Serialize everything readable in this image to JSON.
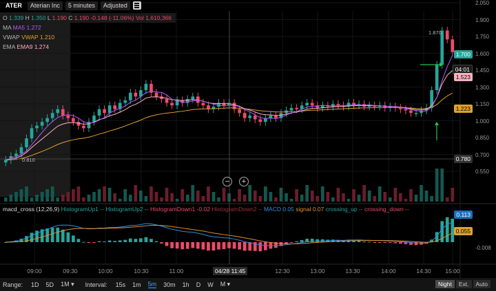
{
  "topbar": {
    "symbol": "ATER",
    "name": "Aterian Inc",
    "interval": "5 minutes",
    "adjusted": "Adjusted"
  },
  "legend": {
    "o_label": "O",
    "o_val": "1.339",
    "h_label": "H",
    "h_val": "1.350",
    "l_label": "L",
    "l_val": "1.190",
    "c_label": "C",
    "c_val": "1.190",
    "change": "-0.148 (-11.06%)",
    "vol_label": "Vol",
    "vol_val": "1,610,366",
    "ma_label": "MA",
    "ma_val": "MA5 1.272",
    "vwap_label": "VWAP",
    "vwap_val": "VWAP 1.210",
    "ema_label": "EMA",
    "ema_val": "EMA9 1.274"
  },
  "price_axis": [
    "2.050",
    "1.900",
    "1.750",
    "1.600",
    "1.450",
    "1.300",
    "1.150",
    "1.000",
    "0.850",
    "0.700",
    "0.550"
  ],
  "price_tags": {
    "last": "1.700",
    "countdown": "04:01",
    "ema": "1.523",
    "vwap": "1.223",
    "cursor": "0.780"
  },
  "annotations": {
    "high": "1.870",
    "low": "0.810"
  },
  "macd_legend": {
    "name": "macd_cross (12,26,9)",
    "hu1": "HistogramUp1 --",
    "hu2": "HistogramUp2 --",
    "hd1": "HistogramDown1 -0.02",
    "hd2": "HistogramDown2 --",
    "macd": "MACD 0.05",
    "signal": "signal 0.07",
    "cu": "crossing_up --",
    "cd": "crossing_down --"
  },
  "macd_axis": {
    "macd": "0.113",
    "signal": "0.055",
    "zero": "-0.008"
  },
  "time_axis": [
    "09:00",
    "09:30",
    "10:00",
    "10:30",
    "11:00",
    "12:30",
    "13:00",
    "13:30",
    "14:00",
    "14:30",
    "15:00"
  ],
  "cursor_time": "04/28 11:45",
  "bottombar": {
    "range_label": "Range:",
    "ranges": [
      "1D",
      "5D",
      "1M ▾"
    ],
    "interval_label": "Interval:",
    "intervals": [
      "15s",
      "1m",
      "5m",
      "30m",
      "1h",
      "D",
      "W",
      "M ▾"
    ],
    "active_interval": "5m",
    "right": [
      "Night",
      "Ext.",
      "Auto"
    ]
  },
  "colors": {
    "up": "#26a69a",
    "down": "#ef4a6a",
    "ma": "#b05cff",
    "vwap": "#e0a030",
    "ema": "#ffb0c0",
    "macd": "#2f8fe0",
    "signal": "#e09030"
  },
  "chart_data": {
    "type": "candlestick",
    "ylim": [
      0.5,
      2.1
    ],
    "closes": [
      0.85,
      0.88,
      0.9,
      0.95,
      1.02,
      1.1,
      1.12,
      1.15,
      1.18,
      1.22,
      1.25,
      1.2,
      1.18,
      1.15,
      1.12,
      1.1,
      1.15,
      1.2,
      1.25,
      1.22,
      1.28,
      1.25,
      1.3,
      1.32,
      1.38,
      1.35,
      1.4,
      1.45,
      1.38,
      1.35,
      1.33,
      1.3,
      1.28,
      1.32,
      1.3,
      1.33,
      1.35,
      1.3,
      1.28,
      1.25,
      1.27,
      1.3,
      1.28,
      1.3,
      1.25,
      1.22,
      1.18,
      1.2,
      1.17,
      1.15,
      1.18,
      1.2,
      1.18,
      1.22,
      1.24,
      1.26,
      1.25,
      1.28,
      1.3,
      1.28,
      1.26,
      1.28,
      1.27,
      1.29,
      1.28,
      1.27,
      1.3,
      1.28,
      1.29,
      1.27,
      1.28,
      1.27,
      1.28,
      1.26,
      1.27,
      1.26,
      1.25,
      1.24,
      1.22,
      1.22,
      1.24,
      1.26,
      1.4,
      1.6,
      1.87,
      1.8,
      1.7
    ]
  }
}
